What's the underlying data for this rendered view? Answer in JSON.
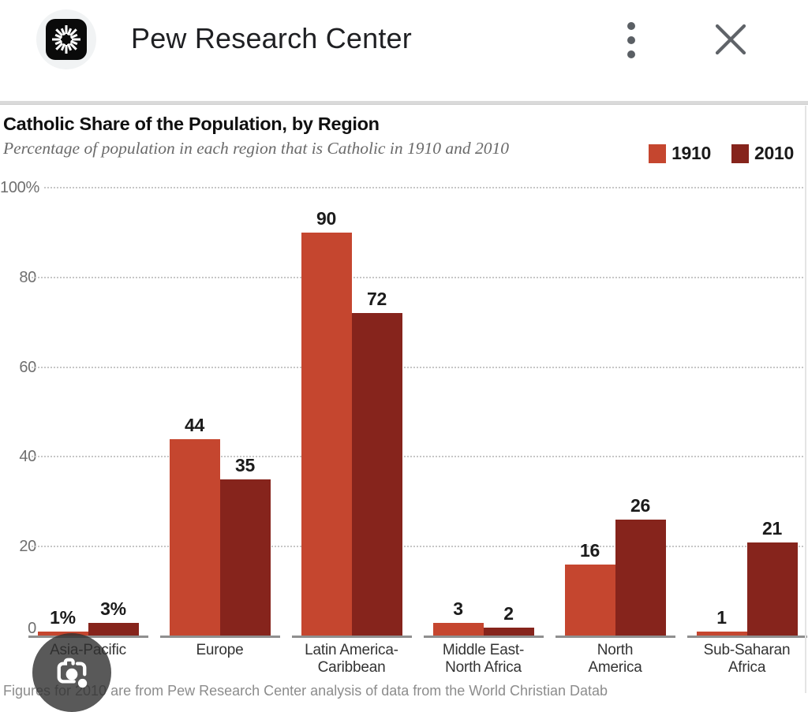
{
  "header": {
    "title": "Pew Research Center",
    "logo_icon": "pew-research-sunburst-logo",
    "menu_icon": "three-dot-vertical-menu",
    "close_icon": "close-x"
  },
  "chart": {
    "source_note_partial": "Figures for 2010 are from Pew Research Center analysis of data from the World Christian Datab",
    "colors": {
      "series_1910": "#c5462f",
      "series_2010": "#86241c",
      "gridline": "#c6c6c6",
      "axis_baseline": "#8f8f8f"
    }
  },
  "chart_data": {
    "type": "bar",
    "title": "Catholic Share of the Population, by Region",
    "subtitle": "Percentage of population in each region that is Catholic in 1910 and 2010",
    "categories": [
      "Asia-Pacific",
      "Europe",
      "Latin America-Caribbean",
      "Middle East-North Africa",
      "North America",
      "Sub-Saharan Africa"
    ],
    "category_label_lines": [
      [
        "Asia-Pacific"
      ],
      [
        "Europe"
      ],
      [
        "Latin America-",
        "Caribbean"
      ],
      [
        "Middle East-",
        "North Africa"
      ],
      [
        "North",
        "America"
      ],
      [
        "Sub-Saharan",
        "Africa"
      ]
    ],
    "series": [
      {
        "name": "1910",
        "color": "#c5462f",
        "values": [
          1,
          44,
          90,
          3,
          16,
          1
        ],
        "data_labels": [
          "1%",
          "44",
          "90",
          "3",
          "16",
          "1"
        ]
      },
      {
        "name": "2010",
        "color": "#86241c",
        "values": [
          3,
          35,
          72,
          2,
          26,
          21
        ],
        "data_labels": [
          "3%",
          "35",
          "72",
          "2",
          "26",
          "21"
        ]
      }
    ],
    "ylim": [
      0,
      100
    ],
    "ylabel": "",
    "xlabel": "",
    "y_ticks": [
      {
        "label": "100%",
        "value": 100
      },
      {
        "label": "80",
        "value": 80
      },
      {
        "label": "60",
        "value": 60
      },
      {
        "label": "40",
        "value": 40
      },
      {
        "label": "20",
        "value": 20
      },
      {
        "label": "0",
        "value": 0
      }
    ],
    "grid": "dotted-horizontal",
    "legend_position": "top-right"
  },
  "lens_button": {
    "icon": "google-lens-camera"
  }
}
